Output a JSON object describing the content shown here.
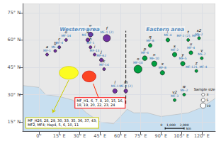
{
  "chart_data": {
    "type": "scatter",
    "xlim": [
      -12,
      130
    ],
    "ylim": [
      10,
      80
    ],
    "xticks": [
      {
        "value": 0,
        "label": "0°"
      },
      {
        "value": 15,
        "label": "15° E"
      },
      {
        "value": 30,
        "label": "30° E"
      },
      {
        "value": 45,
        "label": "45° E"
      },
      {
        "value": 60,
        "label": "60° E"
      },
      {
        "value": 75,
        "label": "75° E"
      },
      {
        "value": 90,
        "label": "90° E"
      },
      {
        "value": 105,
        "label": "105° E"
      },
      {
        "value": 120,
        "label": "120° E"
      }
    ],
    "yticks": [
      {
        "value": 15,
        "label": "15° N"
      },
      {
        "value": 30,
        "label": "30° N"
      },
      {
        "value": 45,
        "label": "45° N"
      },
      {
        "value": 60,
        "label": "60° N"
      },
      {
        "value": 75,
        "label": "75° N"
      }
    ],
    "grid": true,
    "ocean_color": "#c8dff0",
    "land": {
      "color": "#e8e8e8",
      "edge_color": "#aaaaaa",
      "points": [
        [
          -12,
          35
        ],
        [
          0,
          34
        ],
        [
          5,
          30
        ],
        [
          15,
          29
        ],
        [
          25,
          27
        ],
        [
          35,
          20
        ],
        [
          45,
          15
        ],
        [
          55,
          14
        ],
        [
          65,
          22
        ],
        [
          70,
          20
        ],
        [
          80,
          20
        ],
        [
          90,
          18
        ],
        [
          100,
          19
        ],
        [
          110,
          20
        ],
        [
          120,
          23
        ],
        [
          130,
          28
        ],
        [
          130,
          80
        ],
        [
          -12,
          80
        ],
        [
          -12,
          35
        ]
      ]
    },
    "label_color": "#2e74b5",
    "series": [
      {
        "color": "#7030a0",
        "points": [
          {
            "x": 6,
            "y": 52,
            "size": 3,
            "label": "a",
            "hap": "MF-1"
          },
          {
            "x": 12,
            "y": 54,
            "size": 3,
            "label": "b",
            "hap": "MF-4"
          },
          {
            "x": 20,
            "y": 60,
            "size": 3,
            "label": "d",
            "hap": "MF-14"
          },
          {
            "x": 15,
            "y": 56,
            "size": 3,
            "label": "c",
            "hap": "MF-4"
          },
          {
            "x": 38,
            "y": 63,
            "size": 8,
            "label": "e",
            "hap": "MF-1 (2)"
          },
          {
            "x": 50,
            "y": 61,
            "size": 18,
            "label": "f",
            "hap": "MF-1 (2)"
          },
          {
            "x": 36,
            "y": 60,
            "size": 5,
            "label": "g",
            "hap": "MF-157"
          },
          {
            "x": 38,
            "y": 56,
            "size": 3,
            "label": "h",
            "hap": "MF-1"
          },
          {
            "x": 41,
            "y": 52,
            "size": 3,
            "label": "i",
            "hap": "MF-13"
          },
          {
            "x": 46,
            "y": 49,
            "size": 5,
            "label": "j",
            "hap": "MF-62"
          },
          {
            "x": 48,
            "y": 44,
            "size": 3,
            "label": "k",
            "hap": "MF-16"
          },
          {
            "x": 56,
            "y": 32,
            "size": 7,
            "label": "l",
            "hap": "MF-1"
          },
          {
            "x": 64,
            "y": 32,
            "size": 5,
            "label": "m",
            "hap": "MF-2 (2)"
          }
        ]
      },
      {
        "color": "#00a040",
        "points": [
          {
            "x": 73,
            "y": 44,
            "size": 22,
            "label": "o",
            "hap": "MF-10"
          },
          {
            "x": 78,
            "y": 50,
            "size": 8,
            "label": "p",
            "hap": "MF-4"
          },
          {
            "x": 82,
            "y": 57,
            "size": 5,
            "label": "q",
            "hap": "MF-8"
          },
          {
            "x": 85,
            "y": 47,
            "size": 10,
            "label": "n",
            "hap": "MF-10"
          },
          {
            "x": 91,
            "y": 42,
            "size": 7,
            "label": "x",
            "hap": "MF-8"
          },
          {
            "x": 95,
            "y": 60,
            "size": 5,
            "label": "r",
            "hap": "MF-4"
          },
          {
            "x": 100,
            "y": 52,
            "size": 7,
            "label": "s",
            "hap": "MF-2"
          },
          {
            "x": 106,
            "y": 47,
            "size": 7,
            "label": "y",
            "hap": "MF-5"
          },
          {
            "x": 110,
            "y": 60,
            "size": 3,
            "label": "t",
            "hap": "MF-2 (2), MF-4"
          },
          {
            "x": 112,
            "y": 53,
            "size": 5,
            "label": "u",
            "hap": "MF-4"
          },
          {
            "x": 118,
            "y": 61,
            "size": 3,
            "label": "s2",
            "hap": "MF-2"
          },
          {
            "x": 120,
            "y": 50,
            "size": 3,
            "label": "v",
            "hap": "MF-7"
          },
          {
            "x": 107,
            "y": 30,
            "size": 3,
            "label": "w",
            "hap": "MF-2"
          },
          {
            "x": 100,
            "y": 27,
            "size": 3,
            "label": "v2",
            "hap": "MF-3"
          },
          {
            "x": 116,
            "y": 43,
            "size": 3,
            "label": "z",
            "hap": "MF-121, MF-4"
          }
        ]
      }
    ],
    "patches": [
      {
        "x": 22,
        "y": 42,
        "width": 14,
        "height": 7,
        "color": "#ffff00",
        "edge_color": "#cccc00"
      },
      {
        "x": 37,
        "y": 40,
        "width": 10,
        "height": 6,
        "color": "#ff2800",
        "edge_color": "#cc0000"
      }
    ],
    "arrows": [
      {
        "from": [
          22,
          38
        ],
        "to": [
          10,
          20
        ],
        "color": "#cccc00"
      },
      {
        "from": [
          40,
          36
        ],
        "to": [
          45,
          26
        ],
        "color": "#ff2800"
      }
    ],
    "dividing_line": {
      "x": [
        64,
        64
      ],
      "y": [
        25,
        65
      ],
      "color": "#333333",
      "line_style": "dashed"
    },
    "area_labels": [
      {
        "text": "Western area",
        "x": 30,
        "y": 66
      },
      {
        "text": "Eastern area",
        "x": 93,
        "y": 66
      }
    ],
    "boxes": [
      {
        "x0": 30,
        "y0": 21,
        "width": 28,
        "height": 9,
        "text": "MF_H1, 6, 7, 8, 10, 15, 16,\n18, 19, 20, 22, 23, 24",
        "color": "red"
      },
      {
        "x0": -11,
        "y0": 10.5,
        "width": 35,
        "height": 8,
        "text": "MF_H26, 28, 29, 30, 33, 35, 36, 37, 43;\nMF2, MF4; Hap4, 5, 6, 10, 11",
        "color": "#cccc00"
      }
    ],
    "sample_legend": {
      "title": "Sample size",
      "x": 121,
      "y": 27,
      "sizes": [
        3,
        5,
        10
      ],
      "labels": [
        "3",
        "5",
        "10"
      ]
    },
    "scale_bar": {
      "x0": 93,
      "x1": 107,
      "y": 11.5,
      "text": "0    1,000    2,000",
      "unit": "km"
    }
  }
}
